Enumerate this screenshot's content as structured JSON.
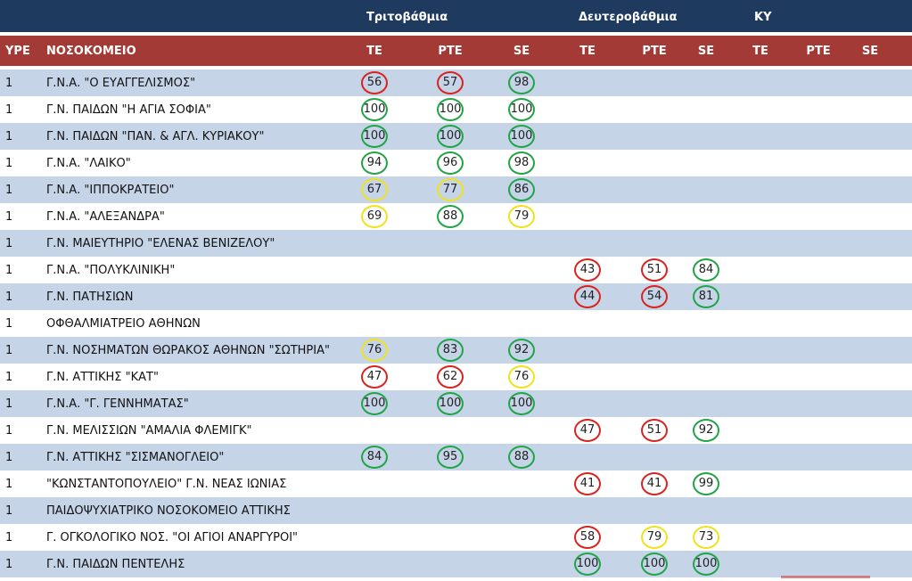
{
  "groups": {
    "tertiary": "Τριτοβάθμια",
    "secondary": "Δευτεροβάθμια",
    "ky": "ΚΥ"
  },
  "headers": {
    "ype": "ΥΡΕ",
    "hospital": "ΝΟΣΟΚΟΜΕΙΟ",
    "cols": [
      "TE",
      "PTE",
      "SE",
      "TE",
      "PTE",
      "SE",
      "TE",
      "PTE",
      "SE"
    ]
  },
  "colors": {
    "red": "#d8231f",
    "green": "#21a447",
    "yellow": "#f0e21c",
    "header_blue": "#1f3a5f",
    "header_red": "#a33a36",
    "band": "#c6d4e8"
  },
  "rows": [
    {
      "ype": "1",
      "name": "Γ.Ν.Α. \"Ο ΕΥΑΓΓΕΛΙΣΜΟΣ\"",
      "cells": [
        {
          "col": 0,
          "v": "56",
          "c": "red"
        },
        {
          "col": 1,
          "v": "57",
          "c": "red"
        },
        {
          "col": 2,
          "v": "98",
          "c": "green"
        }
      ]
    },
    {
      "ype": "1",
      "name": "Γ.Ν. ΠΑΙΔΩΝ \"Η ΑΓΙΑ ΣΟΦΙΑ\"",
      "cells": [
        {
          "col": 0,
          "v": "100",
          "c": "green"
        },
        {
          "col": 1,
          "v": "100",
          "c": "green"
        },
        {
          "col": 2,
          "v": "100",
          "c": "green"
        }
      ]
    },
    {
      "ype": "1",
      "name": "Γ.Ν. ΠΑΙΔΩΝ \"ΠΑΝ. & ΑΓΛ. ΚΥΡΙΑΚΟΥ\"",
      "cells": [
        {
          "col": 0,
          "v": "100",
          "c": "green"
        },
        {
          "col": 1,
          "v": "100",
          "c": "green"
        },
        {
          "col": 2,
          "v": "100",
          "c": "green"
        }
      ]
    },
    {
      "ype": "1",
      "name": "Γ.Ν.Α. \"ΛΑΙΚΟ\"",
      "cells": [
        {
          "col": 0,
          "v": "94",
          "c": "green"
        },
        {
          "col": 1,
          "v": "96",
          "c": "green"
        },
        {
          "col": 2,
          "v": "98",
          "c": "green"
        }
      ]
    },
    {
      "ype": "1",
      "name": "Γ.Ν.Α. \"ΙΠΠΟΚΡΑΤΕΙΟ\"",
      "cells": [
        {
          "col": 0,
          "v": "67",
          "c": "yellow"
        },
        {
          "col": 1,
          "v": "77",
          "c": "yellow"
        },
        {
          "col": 2,
          "v": "86",
          "c": "green"
        }
      ]
    },
    {
      "ype": "1",
      "name": "Γ.Ν.Α. \"ΑΛΕΞΑΝΔΡΑ\"",
      "cells": [
        {
          "col": 0,
          "v": "69",
          "c": "yellow"
        },
        {
          "col": 1,
          "v": "88",
          "c": "green"
        },
        {
          "col": 2,
          "v": "79",
          "c": "yellow"
        }
      ]
    },
    {
      "ype": "1",
      "name": "Γ.Ν. ΜΑΙΕΥΤΗΡΙΟ \"ΕΛΕΝΑΣ ΒΕΝΙΖΕΛΟΥ\"",
      "cells": []
    },
    {
      "ype": "1",
      "name": "Γ.Ν.Α. \"ΠΟΛΥΚΛΙΝΙΚΗ\"",
      "cells": [
        {
          "col": 3,
          "v": "43",
          "c": "red"
        },
        {
          "col": 4,
          "v": "51",
          "c": "red"
        },
        {
          "col": 5,
          "v": "84",
          "c": "green"
        }
      ]
    },
    {
      "ype": "1",
      "name": "Γ.Ν. ΠΑΤΗΣΙΩΝ",
      "cells": [
        {
          "col": 3,
          "v": "44",
          "c": "red"
        },
        {
          "col": 4,
          "v": "54",
          "c": "red"
        },
        {
          "col": 5,
          "v": "81",
          "c": "green"
        }
      ]
    },
    {
      "ype": "1",
      "name": "ΟΦΘΑΛΜΙΑΤΡΕΙΟ ΑΘΗΝΩΝ",
      "cells": []
    },
    {
      "ype": "1",
      "name": "Γ.Ν. ΝΟΣΗΜΑΤΩΝ ΘΩΡΑΚΟΣ ΑΘΗΝΩΝ \"ΣΩΤΗΡΙΑ\"",
      "cells": [
        {
          "col": 0,
          "v": "76",
          "c": "yellow"
        },
        {
          "col": 1,
          "v": "83",
          "c": "green"
        },
        {
          "col": 2,
          "v": "92",
          "c": "green"
        }
      ]
    },
    {
      "ype": "1",
      "name": "Γ.Ν. ΑΤΤΙΚΗΣ \"ΚΑΤ\"",
      "cells": [
        {
          "col": 0,
          "v": "47",
          "c": "red"
        },
        {
          "col": 1,
          "v": "62",
          "c": "red"
        },
        {
          "col": 2,
          "v": "76",
          "c": "yellow"
        }
      ]
    },
    {
      "ype": "1",
      "name": "Γ.Ν.Α. \"Γ. ΓΕΝΝΗΜΑΤΑΣ\"",
      "cells": [
        {
          "col": 0,
          "v": "100",
          "c": "green"
        },
        {
          "col": 1,
          "v": "100",
          "c": "green"
        },
        {
          "col": 2,
          "v": "100",
          "c": "green"
        }
      ]
    },
    {
      "ype": "1",
      "name": "Γ.Ν. ΜΕΛΙΣΣΙΩΝ \"ΑΜΑΛΙΑ ΦΛΕΜΙΓΚ\"",
      "cells": [
        {
          "col": 3,
          "v": "47",
          "c": "red"
        },
        {
          "col": 4,
          "v": "51",
          "c": "red"
        },
        {
          "col": 5,
          "v": "92",
          "c": "green"
        }
      ]
    },
    {
      "ype": "1",
      "name": "Γ.Ν. ΑΤΤΙΚΗΣ \"ΣΙΣΜΑΝΟΓΛΕΙΟ\"",
      "cells": [
        {
          "col": 0,
          "v": "84",
          "c": "green"
        },
        {
          "col": 1,
          "v": "95",
          "c": "green"
        },
        {
          "col": 2,
          "v": "88",
          "c": "green"
        }
      ]
    },
    {
      "ype": "1",
      "name": "\"ΚΩΝΣΤΑΝΤΟΠΟΥΛΕΙΟ\" Γ.Ν. ΝΕΑΣ ΙΩΝΙΑΣ",
      "cells": [
        {
          "col": 3,
          "v": "41",
          "c": "red"
        },
        {
          "col": 4,
          "v": "41",
          "c": "red"
        },
        {
          "col": 5,
          "v": "99",
          "c": "green"
        }
      ]
    },
    {
      "ype": "1",
      "name": "ΠΑΙΔΟΨΥΧΙΑΤΡΙΚΟ ΝΟΣΟΚΟΜΕΙΟ ΑΤΤΙΚΗΣ",
      "cells": []
    },
    {
      "ype": "1",
      "name": "Γ. ΟΓΚΟΛΟΓΙΚΟ ΝΟΣ.  \"ΟΙ ΑΓΙΟΙ ΑΝΑΡΓΥΡΟΙ\"",
      "cells": [
        {
          "col": 3,
          "v": "58",
          "c": "red"
        },
        {
          "col": 4,
          "v": "79",
          "c": "yellow"
        },
        {
          "col": 5,
          "v": "73",
          "c": "yellow"
        }
      ]
    },
    {
      "ype": "1",
      "name": "Γ.Ν. ΠΑΙΔΩΝ ΠΕΝΤΕΛΗΣ",
      "cells": [
        {
          "col": 3,
          "v": "100",
          "c": "green"
        },
        {
          "col": 4,
          "v": "100",
          "c": "green"
        },
        {
          "col": 5,
          "v": "100",
          "c": "green"
        }
      ]
    }
  ]
}
